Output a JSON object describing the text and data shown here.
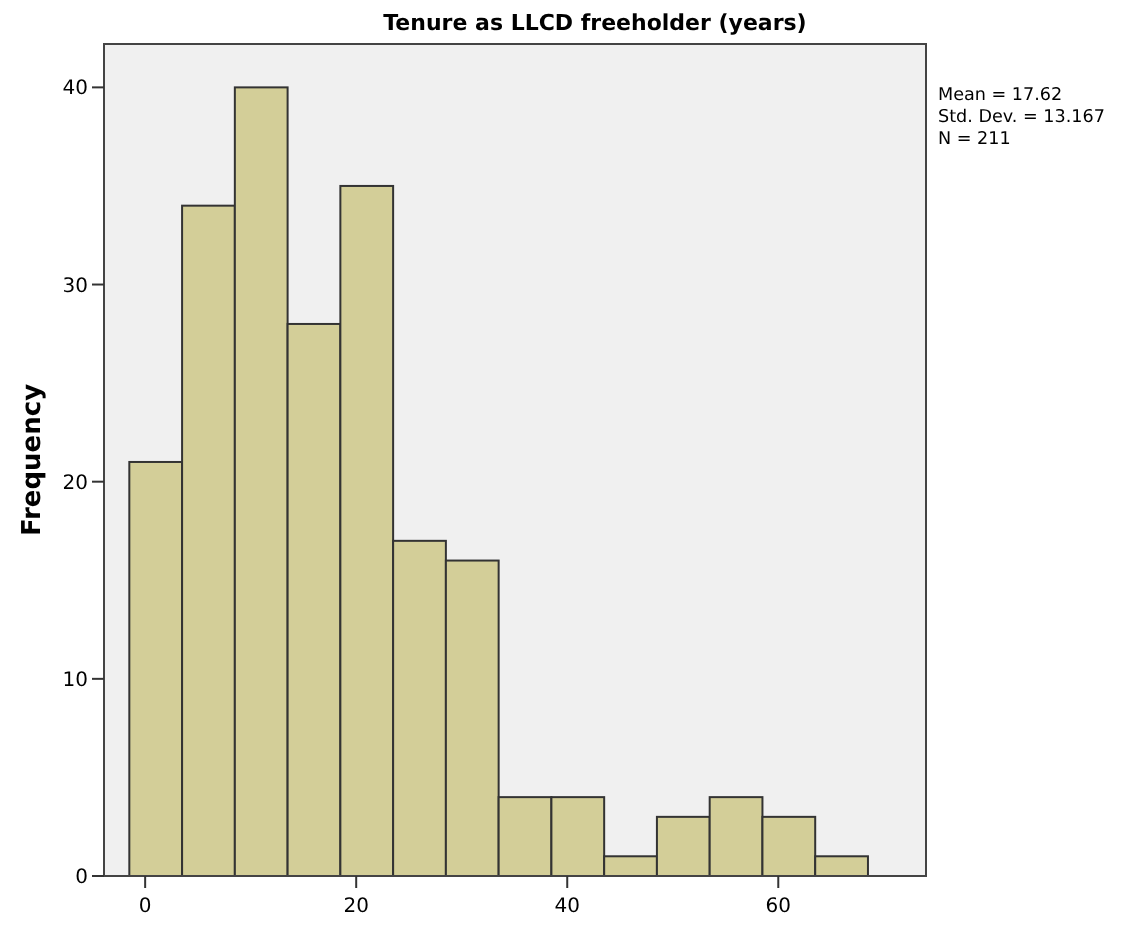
{
  "chart_data": {
    "type": "histogram",
    "title": "Tenure as LLCD freeholder (years)",
    "ylabel": "Frequency",
    "bins": [
      -1.5,
      3.5,
      8.5,
      13.5,
      18.5,
      23.5,
      28.5,
      33.5,
      38.5,
      43.5,
      48.5,
      53.5,
      58.5,
      63.5,
      68.5
    ],
    "values": [
      21,
      34,
      40,
      28,
      35,
      17,
      16,
      4,
      4,
      1,
      3,
      4,
      3,
      1
    ],
    "color": "#d3ce98",
    "xlim": [
      -3.9,
      74
    ],
    "xticks": [
      0,
      20,
      40,
      60
    ],
    "ylim": [
      0,
      42.2
    ],
    "yticks": [
      0,
      10,
      20,
      30,
      40
    ],
    "grid": false,
    "annotations": [
      "Mean = 17.62",
      "Std. Dev. = 13.167",
      "N = 211"
    ]
  }
}
